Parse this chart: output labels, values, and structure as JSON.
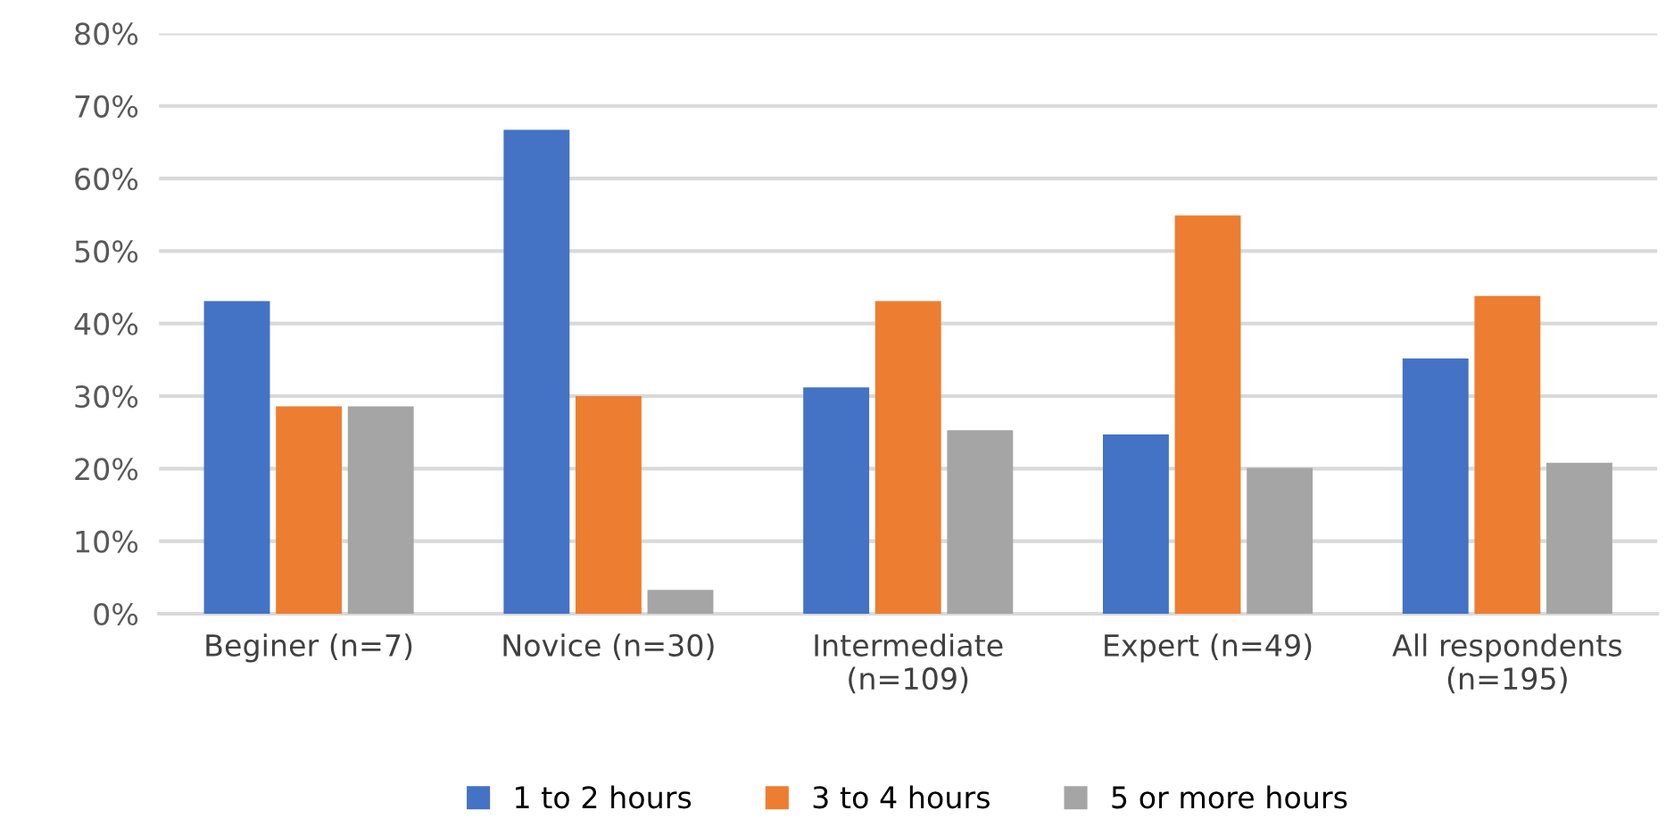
{
  "chart_data": {
    "type": "bar",
    "categories": [
      "Beginer (n=7)",
      "Novice (n=30)",
      "Intermediate\n(n=109)",
      "Expert (n=49)",
      "All respondents\n(n=195)"
    ],
    "series": [
      {
        "name": "1 to 2 hours",
        "color": "#4472c4",
        "values": [
          43.1,
          66.7,
          31.2,
          24.7,
          35.2
        ]
      },
      {
        "name": "3 to 4 hours",
        "color": "#ed7d31",
        "values": [
          28.6,
          30.0,
          43.1,
          54.9,
          43.8
        ]
      },
      {
        "name": "5 or more hours",
        "color": "#a5a5a5",
        "values": [
          28.6,
          3.3,
          25.3,
          20.1,
          20.8
        ]
      }
    ],
    "ylim": [
      0,
      80
    ],
    "yticks": [
      {
        "value": 0,
        "label": "0%"
      },
      {
        "value": 10,
        "label": "10%"
      },
      {
        "value": 20,
        "label": "20%"
      },
      {
        "value": 30,
        "label": "30%"
      },
      {
        "value": 40,
        "label": "40%"
      },
      {
        "value": 50,
        "label": "50%"
      },
      {
        "value": 60,
        "label": "60%"
      },
      {
        "value": 70,
        "label": "70%"
      },
      {
        "value": 80,
        "label": "80%"
      }
    ],
    "grid": "y",
    "legend": "bottom"
  }
}
